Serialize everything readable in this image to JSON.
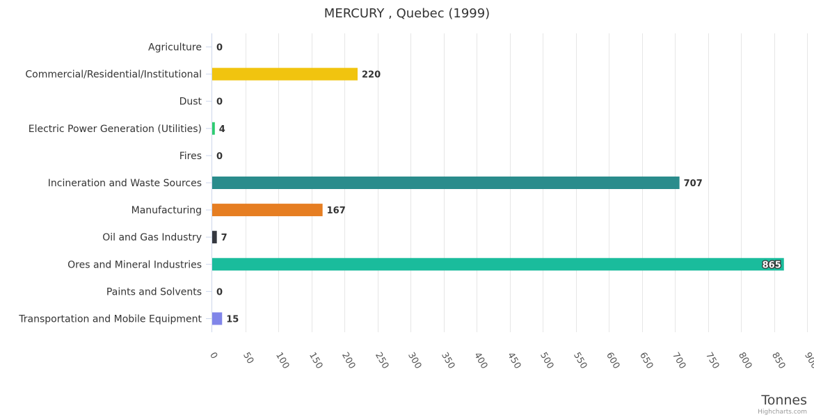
{
  "chart_data": {
    "type": "bar",
    "orientation": "horizontal",
    "title": "MERCURY , Quebec (1999)",
    "xlabel": "",
    "ylabel": "Tonnes",
    "xlim": [
      0,
      900
    ],
    "tick_values": [
      0,
      50,
      100,
      150,
      200,
      250,
      300,
      350,
      400,
      450,
      500,
      550,
      600,
      650,
      700,
      750,
      800,
      850,
      900
    ],
    "grid": true,
    "legend": "none",
    "categories": [
      "Agriculture",
      "Commercial/Residential/Institutional",
      "Dust",
      "Electric Power Generation (Utilities)",
      "Fires",
      "Incineration and Waste Sources",
      "Manufacturing",
      "Oil and Gas Industry",
      "Ores and Mineral Industries",
      "Paints and Solvents",
      "Transportation and Mobile Equipment"
    ],
    "values": [
      0,
      220,
      0,
      4,
      0,
      707,
      167,
      7,
      865,
      0,
      15
    ],
    "colors": [
      "#7cb5ec",
      "#f1c40f",
      "#2c3e50",
      "#2ecc71",
      "#d35400",
      "#2a8c8c",
      "#e67e22",
      "#34373f",
      "#1abc9c",
      "#2c3e50",
      "#8085e9"
    ]
  },
  "credits": "Highcharts.com"
}
